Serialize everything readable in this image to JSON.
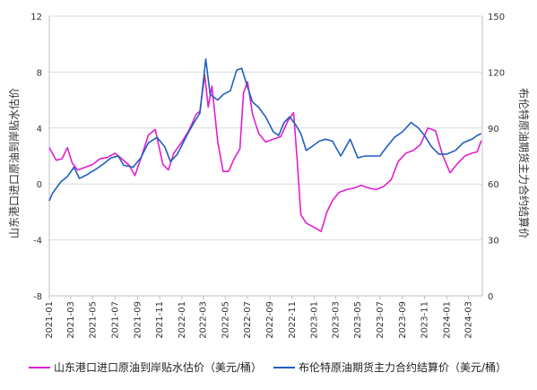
{
  "chart_data": {
    "type": "line",
    "ylabel_left": "山东港口进口原油到岸贴水估价",
    "ylabel_right": "布伦特原油期货主力合约结算价",
    "left_axis": {
      "min": -8,
      "max": 12,
      "ticks": [
        -8,
        -4,
        0,
        4,
        8,
        12
      ]
    },
    "right_axis": {
      "min": 0,
      "max": 150,
      "ticks": [
        0,
        30,
        60,
        90,
        120,
        150
      ]
    },
    "x_ticks": [
      "2021-01",
      "2021-03",
      "2021-05",
      "2021-07",
      "2021-09",
      "2021-11",
      "2022-01",
      "2022-03",
      "2022-05",
      "2022-07",
      "2022-09",
      "2022-11",
      "2023-01",
      "2023-03",
      "2023-05",
      "2023-07",
      "2023-09",
      "2023-11",
      "2024-01",
      "2024-03"
    ],
    "legend_position": "bottom",
    "series": [
      {
        "name": "山东港口进口原油到岸贴水估价（美元/桶）",
        "axis": "left",
        "color": "#e020d0",
        "x": [
          "2021-01-01",
          "2021-01-20",
          "2021-02-05",
          "2021-02-20",
          "2021-03-05",
          "2021-03-20",
          "2021-04-10",
          "2021-05-01",
          "2021-05-20",
          "2021-06-10",
          "2021-07-01",
          "2021-07-20",
          "2021-08-10",
          "2021-08-25",
          "2021-09-10",
          "2021-10-01",
          "2021-10-20",
          "2021-11-10",
          "2021-11-25",
          "2021-12-10",
          "2022-01-01",
          "2022-01-20",
          "2022-02-10",
          "2022-02-20",
          "2022-03-05",
          "2022-03-15",
          "2022-03-25",
          "2022-04-10",
          "2022-04-25",
          "2022-05-10",
          "2022-05-25",
          "2022-06-10",
          "2022-06-20",
          "2022-07-01",
          "2022-07-15",
          "2022-08-01",
          "2022-08-20",
          "2022-09-10",
          "2022-10-01",
          "2022-10-20",
          "2022-11-05",
          "2022-11-15",
          "2022-11-25",
          "2022-12-10",
          "2023-01-01",
          "2023-01-20",
          "2023-02-05",
          "2023-02-20",
          "2023-03-10",
          "2023-04-01",
          "2023-04-20",
          "2023-05-10",
          "2023-06-01",
          "2023-06-20",
          "2023-07-10",
          "2023-08-01",
          "2023-08-20",
          "2023-09-10",
          "2023-10-01",
          "2023-10-20",
          "2023-11-10",
          "2023-12-01",
          "2023-12-20",
          "2024-01-10",
          "2024-02-01",
          "2024-02-20",
          "2024-03-10",
          "2024-03-25",
          "2024-04-05"
        ],
        "values": [
          2.6,
          1.7,
          1.8,
          2.6,
          1.5,
          1.0,
          1.2,
          1.4,
          1.8,
          1.9,
          2.2,
          1.8,
          1.3,
          0.6,
          1.8,
          3.5,
          3.9,
          1.4,
          1.0,
          2.2,
          3.0,
          3.8,
          5.0,
          5.2,
          7.8,
          5.5,
          7.0,
          3.0,
          0.9,
          0.9,
          1.8,
          2.5,
          6.5,
          7.3,
          5.0,
          3.6,
          3.0,
          3.2,
          3.4,
          4.5,
          5.1,
          1.7,
          -2.2,
          -2.8,
          -3.1,
          -3.4,
          -2.0,
          -1.2,
          -0.6,
          -0.4,
          -0.3,
          -0.1,
          -0.3,
          -0.4,
          -0.2,
          0.3,
          1.6,
          2.2,
          2.4,
          2.8,
          4.0,
          3.8,
          2.1,
          0.8,
          1.5,
          2.0,
          2.2,
          2.3,
          3.1
        ]
      },
      {
        "name": "布伦特原油期货主力合约结算价（美元/桶）",
        "axis": "right",
        "color": "#1f5fbf",
        "x": [
          "2021-01-01",
          "2021-01-10",
          "2021-02-01",
          "2021-02-20",
          "2021-03-10",
          "2021-03-25",
          "2021-04-15",
          "2021-05-10",
          "2021-06-01",
          "2021-06-20",
          "2021-07-10",
          "2021-07-25",
          "2021-08-20",
          "2021-09-10",
          "2021-10-01",
          "2021-10-25",
          "2021-11-15",
          "2021-12-01",
          "2021-12-20",
          "2022-01-15",
          "2022-02-01",
          "2022-02-20",
          "2022-03-08",
          "2022-03-20",
          "2022-04-10",
          "2022-04-25",
          "2022-05-15",
          "2022-06-01",
          "2022-06-15",
          "2022-07-01",
          "2022-07-15",
          "2022-08-01",
          "2022-08-20",
          "2022-09-10",
          "2022-09-25",
          "2022-10-10",
          "2022-10-25",
          "2022-11-10",
          "2022-11-25",
          "2022-12-10",
          "2022-12-25",
          "2023-01-15",
          "2023-02-01",
          "2023-02-20",
          "2023-03-15",
          "2023-04-10",
          "2023-05-01",
          "2023-05-20",
          "2023-06-10",
          "2023-07-01",
          "2023-07-20",
          "2023-08-10",
          "2023-09-01",
          "2023-09-25",
          "2023-10-15",
          "2023-11-01",
          "2023-11-20",
          "2023-12-10",
          "2024-01-01",
          "2024-01-25",
          "2024-02-15",
          "2024-03-10",
          "2024-03-25",
          "2024-04-05"
        ],
        "values": [
          51,
          55,
          61,
          64,
          69,
          63,
          65,
          68,
          71,
          74,
          75,
          70,
          69,
          74,
          82,
          85,
          80,
          72,
          76,
          86,
          92,
          98,
          127,
          108,
          105,
          108,
          110,
          121,
          122,
          112,
          104,
          101,
          96,
          88,
          86,
          93,
          96,
          92,
          87,
          78,
          80,
          83,
          84,
          83,
          75,
          84,
          74,
          75,
          75,
          75,
          80,
          85,
          88,
          93,
          90,
          86,
          80,
          76,
          76,
          78,
          82,
          84,
          86,
          87
        ]
      }
    ]
  }
}
